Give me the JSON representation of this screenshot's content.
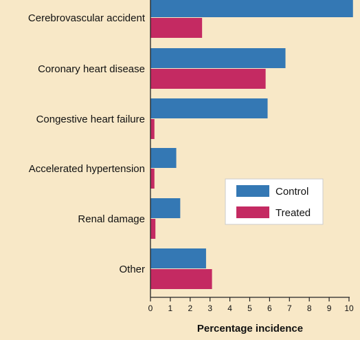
{
  "chart_data": {
    "type": "bar",
    "orientation": "horizontal",
    "categories": [
      "Cerebrovascular accident",
      "Coronary heart disease",
      "Congestive heart failure",
      "Accelerated hypertension",
      "Renal damage",
      "Other"
    ],
    "series": [
      {
        "name": "Control",
        "color": "#3478b4",
        "values": [
          10.2,
          6.8,
          5.9,
          1.3,
          1.5,
          2.8
        ]
      },
      {
        "name": "Treated",
        "color": "#c42a62",
        "values": [
          2.6,
          5.8,
          0.2,
          0.2,
          0.25,
          3.1
        ]
      }
    ],
    "xlabel": "Percentage incidence",
    "ylabel": "",
    "xlim": [
      0,
      10
    ],
    "xticks": [
      0,
      1,
      2,
      3,
      4,
      5,
      6,
      7,
      8,
      9,
      10
    ],
    "grid": false,
    "legend_position": "right-middle"
  },
  "colors": {
    "background": "#f8e8c7",
    "axis": "#222222",
    "legend_bg": "#ffffff"
  }
}
